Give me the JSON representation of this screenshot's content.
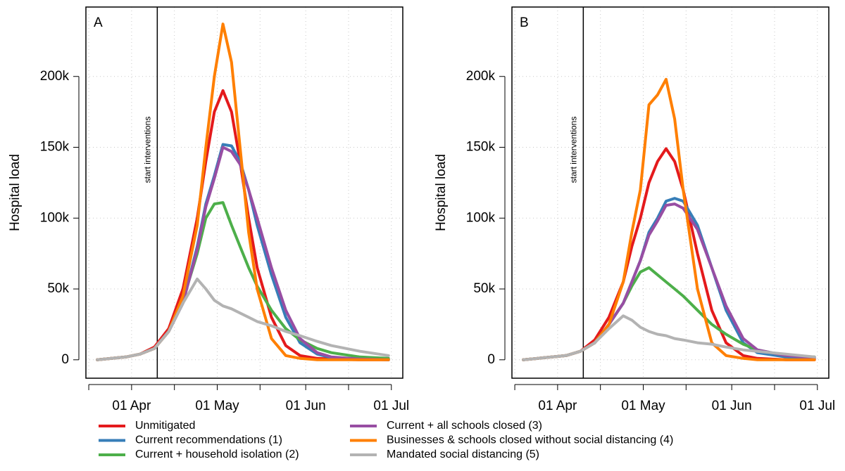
{
  "chart_data": [
    {
      "type": "line",
      "panel": "A",
      "ylabel": "Hospital load",
      "annotation": {
        "text": "start interventions",
        "x": "04-10"
      },
      "x": [
        "03-20",
        "03-25",
        "03-30",
        "04-04",
        "04-09",
        "04-14",
        "04-19",
        "04-24",
        "04-27",
        "04-30",
        "05-03",
        "05-06",
        "05-09",
        "05-12",
        "05-15",
        "05-20",
        "05-25",
        "05-30",
        "06-05",
        "06-10",
        "06-20",
        "06-30"
      ],
      "series": [
        {
          "name": "Unmitigated",
          "color": "#e41a1c",
          "values": [
            0,
            1000,
            2000,
            4000,
            9000,
            22000,
            50000,
            100000,
            140000,
            175000,
            190000,
            175000,
            140000,
            100000,
            65000,
            30000,
            10000,
            3000,
            1000,
            500,
            0,
            0
          ]
        },
        {
          "name": "Current recommendations (1)",
          "color": "#377eb8",
          "values": [
            0,
            1000,
            2000,
            4000,
            8000,
            20000,
            40000,
            80000,
            110000,
            130000,
            152000,
            151000,
            140000,
            120000,
            95000,
            60000,
            30000,
            12000,
            4000,
            1500,
            500,
            0
          ]
        },
        {
          "name": "Current + household isolation (2)",
          "color": "#4daf4a",
          "values": [
            0,
            1000,
            2000,
            4000,
            8000,
            20000,
            42000,
            75000,
            100000,
            110000,
            111000,
            95000,
            80000,
            65000,
            52000,
            35000,
            22000,
            14000,
            8000,
            5000,
            2000,
            1000
          ]
        },
        {
          "name": "Current + all schools closed (3)",
          "color": "#984ea3",
          "values": [
            0,
            1000,
            2000,
            4000,
            8000,
            20000,
            40000,
            78000,
            108000,
            128000,
            150000,
            147000,
            138000,
            120000,
            100000,
            65000,
            35000,
            15000,
            5000,
            2000,
            500,
            0
          ]
        },
        {
          "name": "Businesses & schools closed without social distancing (4)",
          "color": "#ff7f00",
          "values": [
            0,
            1000,
            2000,
            4000,
            8000,
            20000,
            45000,
            95000,
            150000,
            200000,
            237000,
            210000,
            150000,
            90000,
            50000,
            15000,
            3000,
            1000,
            0,
            0,
            0,
            0
          ]
        },
        {
          "name": "Mandated social distancing (5)",
          "color": "#b3b3b3",
          "values": [
            0,
            1000,
            2000,
            4000,
            8000,
            20000,
            40000,
            57000,
            50000,
            42000,
            38000,
            36000,
            33000,
            30000,
            27000,
            24000,
            20000,
            17000,
            13000,
            10000,
            6000,
            3000
          ]
        }
      ],
      "xlim": [
        "03-16",
        "07-05"
      ],
      "ylim": [
        -13000,
        249000
      ],
      "xticks": [
        "03-17",
        {
          "value": "04-01",
          "label": "01 Apr"
        },
        "04-16",
        {
          "value": "05-01",
          "label": "01 May"
        },
        "05-16",
        {
          "value": "06-01",
          "label": "01 Jun"
        },
        "06-16",
        {
          "value": "07-01",
          "label": "01 Jul"
        }
      ],
      "yticks": [
        0,
        {
          "value": 50000,
          "label": "50k"
        },
        {
          "value": 100000,
          "label": "100k"
        },
        {
          "value": 150000,
          "label": "150k"
        },
        {
          "value": 200000,
          "label": "200k"
        }
      ],
      "grid": true
    },
    {
      "type": "line",
      "panel": "B",
      "ylabel": "Hospital load",
      "annotation": {
        "text": "start interventions",
        "x": "04-10"
      },
      "x": [
        "03-20",
        "03-25",
        "03-30",
        "04-04",
        "04-09",
        "04-14",
        "04-19",
        "04-24",
        "04-27",
        "04-30",
        "05-03",
        "05-06",
        "05-09",
        "05-12",
        "05-15",
        "05-20",
        "05-25",
        "05-30",
        "06-05",
        "06-10",
        "06-20",
        "06-30"
      ],
      "series": [
        {
          "color": "#e41a1c",
          "values": [
            0,
            1000,
            2000,
            3000,
            6000,
            14000,
            30000,
            55000,
            80000,
            100000,
            125000,
            140000,
            149000,
            140000,
            120000,
            75000,
            35000,
            12000,
            3000,
            1000,
            0,
            0
          ]
        },
        {
          "color": "#377eb8",
          "values": [
            0,
            1000,
            2000,
            3000,
            6000,
            12000,
            25000,
            40000,
            55000,
            70000,
            90000,
            100000,
            112000,
            114000,
            112000,
            95000,
            65000,
            35000,
            12000,
            5000,
            2000,
            1000
          ]
        },
        {
          "color": "#4daf4a",
          "values": [
            0,
            1000,
            2000,
            3000,
            6000,
            12000,
            25000,
            40000,
            52000,
            62000,
            65000,
            60000,
            55000,
            50000,
            45000,
            35000,
            25000,
            18000,
            11000,
            7000,
            3000,
            2000
          ]
        },
        {
          "color": "#984ea3",
          "values": [
            0,
            1000,
            2000,
            3000,
            6000,
            12000,
            25000,
            40000,
            55000,
            70000,
            88000,
            98000,
            109000,
            110000,
            107000,
            92000,
            65000,
            38000,
            15000,
            7000,
            3000,
            1500
          ]
        },
        {
          "color": "#ff7f00",
          "values": [
            0,
            1000,
            2000,
            3000,
            6000,
            12000,
            25000,
            55000,
            90000,
            120000,
            180000,
            187000,
            198000,
            170000,
            120000,
            50000,
            12000,
            3000,
            1000,
            0,
            0,
            0
          ]
        },
        {
          "color": "#b3b3b3",
          "values": [
            0,
            1000,
            2000,
            3000,
            6000,
            12000,
            22000,
            31000,
            28000,
            23000,
            20000,
            18000,
            17000,
            15000,
            14000,
            12000,
            11000,
            9000,
            7000,
            6000,
            4000,
            2000
          ]
        }
      ],
      "xlim": [
        "03-16",
        "07-05"
      ],
      "ylim": [
        -13000,
        249000
      ],
      "xticks": [
        "03-17",
        {
          "value": "04-01",
          "label": "01 Apr"
        },
        "04-16",
        {
          "value": "05-01",
          "label": "01 May"
        },
        "05-16",
        {
          "value": "06-01",
          "label": "01 Jun"
        },
        "06-16",
        {
          "value": "07-01",
          "label": "01 Jul"
        }
      ],
      "yticks": [
        0,
        {
          "value": 50000,
          "label": "50k"
        },
        {
          "value": 100000,
          "label": "100k"
        },
        {
          "value": 150000,
          "label": "150k"
        },
        {
          "value": 200000,
          "label": "200k"
        }
      ],
      "grid": true
    }
  ]
}
